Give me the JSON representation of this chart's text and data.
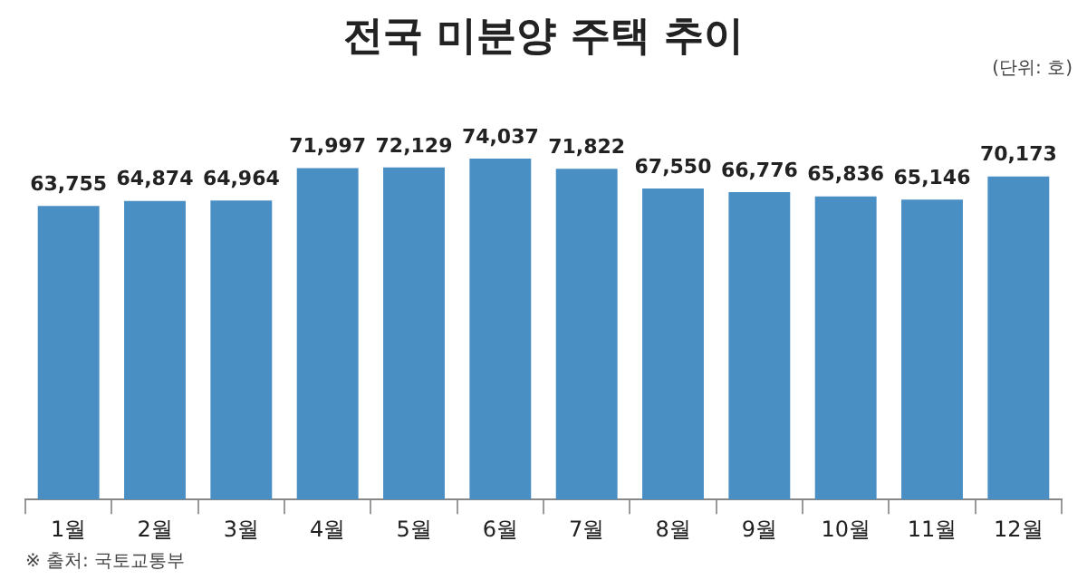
{
  "chart_data": {
    "type": "bar",
    "title": "전국 미분양 주택 추이",
    "categories": [
      "1월",
      "2월",
      "3월",
      "4월",
      "5월",
      "6월",
      "7월",
      "8월",
      "9월",
      "10월",
      "11월",
      "12월"
    ],
    "values": [
      63755,
      64874,
      64964,
      71997,
      72129,
      74037,
      71822,
      67550,
      66776,
      65836,
      65146,
      70173
    ],
    "value_labels": [
      "63,755",
      "64,874",
      "64,964",
      "71,997",
      "72,129",
      "74,037",
      "71,822",
      "67,550",
      "66,776",
      "65,836",
      "65,146",
      "70,173"
    ],
    "color": "#4a8fc4",
    "annotations": [
      "(단위: 호)",
      "※ 출처: 국토교통부"
    ]
  }
}
